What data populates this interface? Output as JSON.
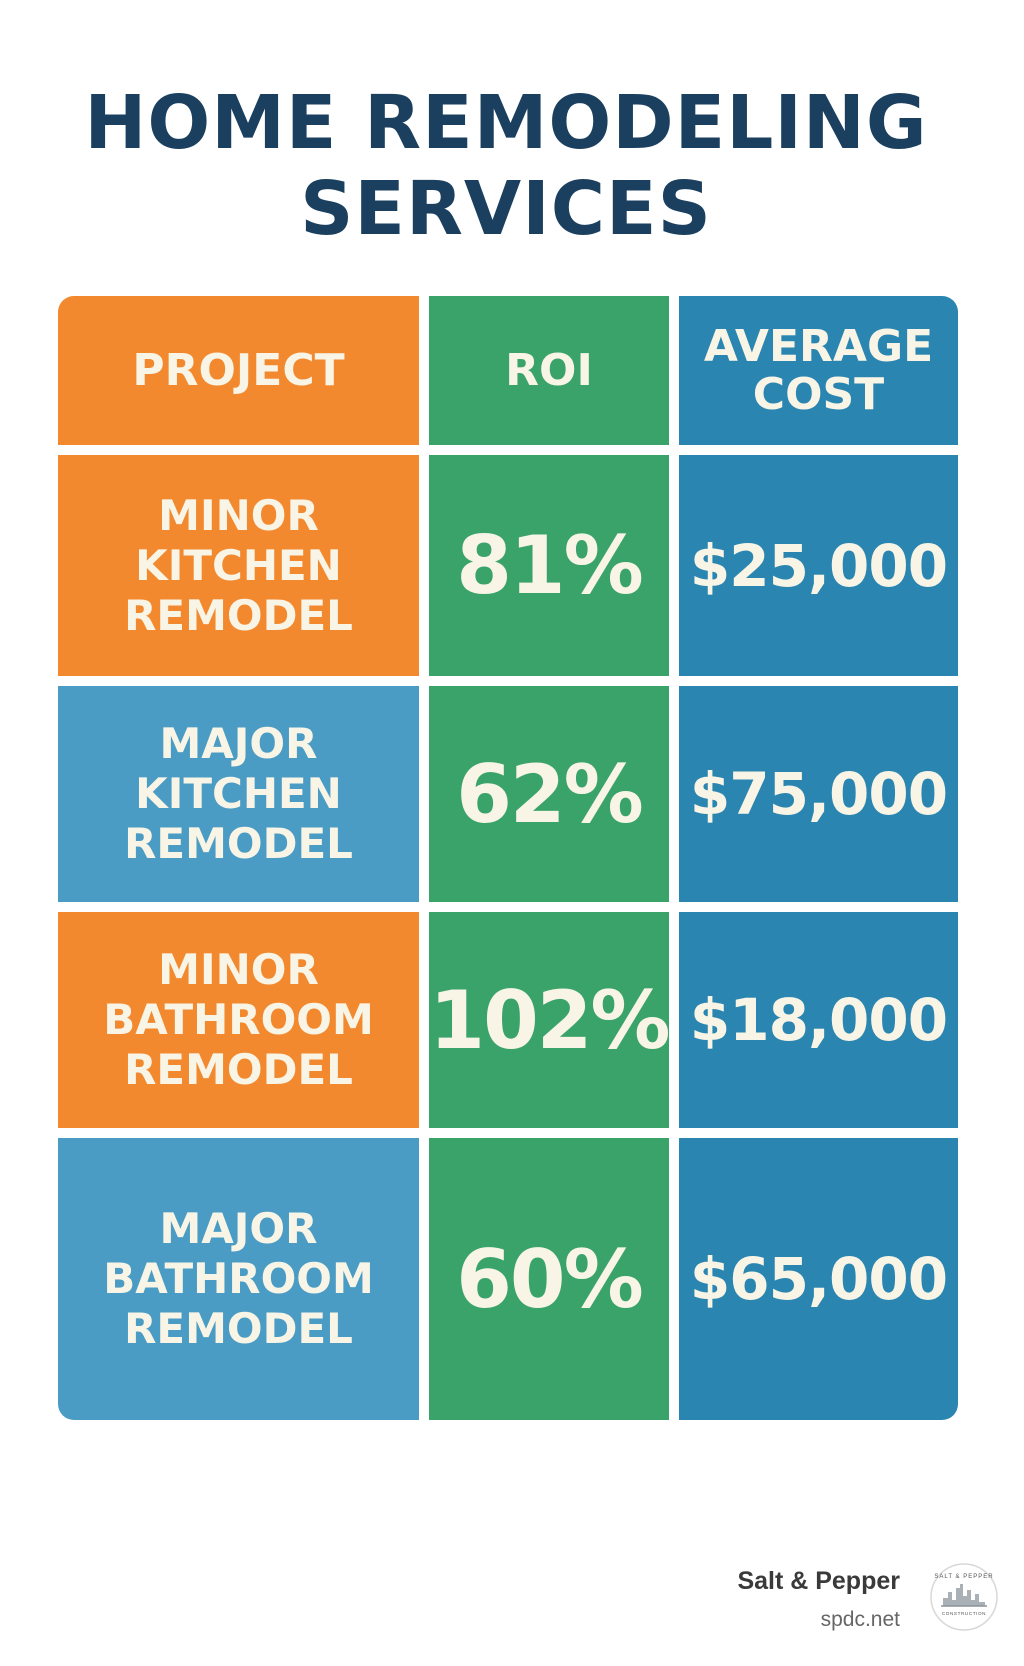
{
  "title": {
    "line1": "HOME REMODELING",
    "line2": "SERVICES"
  },
  "table": {
    "headers": {
      "project": "PROJECT",
      "roi": "ROI",
      "cost_line1": "AVERAGE",
      "cost_line2": "COST"
    },
    "rows": [
      {
        "project": [
          "MINOR",
          "KITCHEN",
          "REMODEL"
        ],
        "roi": "81%",
        "cost": "$25,000"
      },
      {
        "project": [
          "MAJOR",
          "KITCHEN",
          "REMODEL"
        ],
        "roi": "62%",
        "cost": "$75,000"
      },
      {
        "project": [
          "MINOR",
          "BATHROOM",
          "REMODEL"
        ],
        "roi": "102%",
        "cost": "$18,000"
      },
      {
        "project": [
          "MAJOR",
          "BATHROOM",
          "REMODEL"
        ],
        "roi": "60%",
        "cost": "$65,000"
      }
    ]
  },
  "footer": {
    "brand": "Salt & Pepper",
    "url": "spdc.net",
    "logo_text": "SALT & PEPPER CONSTRUCTION",
    "logo_icon": "skyline-logo-icon"
  },
  "colors": {
    "title": "#1b3f5e",
    "orange": "#f2892e",
    "light_blue": "#4a9cc4",
    "green": "#3aa36a",
    "dark_blue": "#2a86b0",
    "text": "#f8f4e6"
  }
}
